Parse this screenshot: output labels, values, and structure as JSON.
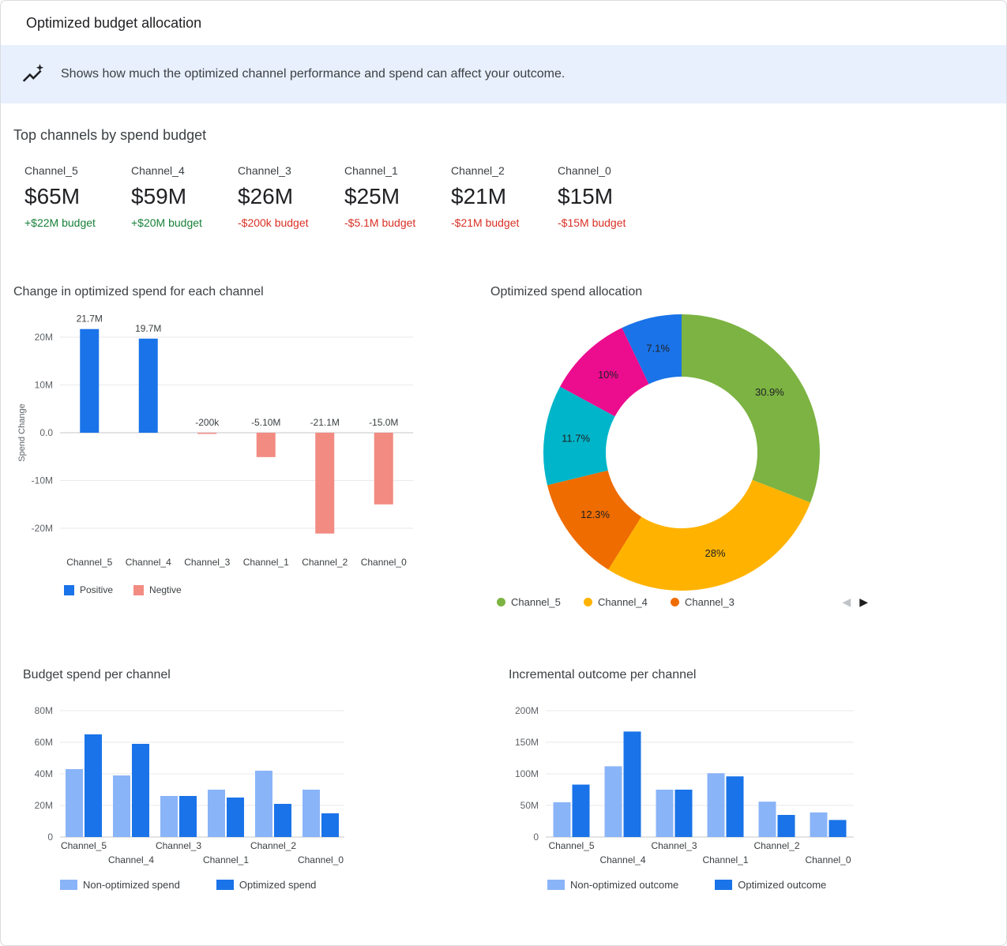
{
  "header": {
    "title": "Optimized budget allocation"
  },
  "banner": {
    "icon": "insights-icon",
    "text": "Shows how much the optimized channel performance and spend can affect your outcome."
  },
  "top_channels": {
    "title": "Top channels by spend budget",
    "cards": [
      {
        "name": "Channel_5",
        "value": "$65M",
        "delta": "+$22M budget",
        "direction": "up",
        "delta_color": "#188038"
      },
      {
        "name": "Channel_4",
        "value": "$59M",
        "delta": "+$20M budget",
        "direction": "up",
        "delta_color": "#188038"
      },
      {
        "name": "Channel_3",
        "value": "$26M",
        "delta": "-$200k budget",
        "direction": "down",
        "delta_color": "#d93025"
      },
      {
        "name": "Channel_1",
        "value": "$25M",
        "delta": "-$5.1M budget",
        "direction": "down",
        "delta_color": "#d93025"
      },
      {
        "name": "Channel_2",
        "value": "$21M",
        "delta": "-$21M budget",
        "direction": "down",
        "delta_color": "#d93025"
      },
      {
        "name": "Channel_0",
        "value": "$15M",
        "delta": "-$15M budget",
        "direction": "down",
        "delta_color": "#d93025"
      }
    ]
  },
  "pager": {
    "prev": "◀",
    "next": "▶"
  },
  "chart_data": [
    {
      "type": "bar",
      "name": "spend-change",
      "title": "Change in optimized spend for each channel",
      "ylabel": "Spend Change",
      "unit": "millions USD",
      "categories": [
        "Channel_5",
        "Channel_4",
        "Channel_3",
        "Channel_1",
        "Channel_2",
        "Channel_0"
      ],
      "values": [
        21.7,
        19.7,
        -0.2,
        -5.1,
        -21.1,
        -15.0
      ],
      "bar_labels": [
        "21.7M",
        "19.7M",
        "-200k",
        "-5.10M",
        "-21.1M",
        "-15.0M"
      ],
      "yticks": [
        20,
        10,
        0,
        -10,
        -20
      ],
      "ytick_labels": [
        "20M",
        "10M",
        "0.0",
        "-10M",
        "-20M"
      ],
      "ylim": [
        -25,
        25
      ],
      "grid": true,
      "legend_position": "bottom",
      "legend": [
        {
          "label": "Positive",
          "color": "#1a73e8"
        },
        {
          "label": "Negtive",
          "color": "#f28b82"
        }
      ]
    },
    {
      "type": "pie",
      "name": "spend-allocation",
      "title": "Optimized spend allocation",
      "donut": true,
      "slices": [
        {
          "text": "30.9%",
          "value": 30.9,
          "color": "#7cb342"
        },
        {
          "text": "28%",
          "value": 28.0,
          "color": "#ffb300"
        },
        {
          "text": "12.3%",
          "value": 12.3,
          "color": "#ef6c00"
        },
        {
          "text": "11.7%",
          "value": 11.7,
          "color": "#00b5c9"
        },
        {
          "text": "10%",
          "value": 10.0,
          "color": "#ec0c8e"
        },
        {
          "text": "7.1%",
          "value": 7.1,
          "color": "#1a73e8"
        }
      ],
      "legend_position": "bottom",
      "legend": [
        {
          "label": "Channel_5",
          "color": "#7cb342"
        },
        {
          "label": "Channel_4",
          "color": "#ffb300"
        },
        {
          "label": "Channel_3",
          "color": "#ef6c00"
        }
      ]
    },
    {
      "type": "bar",
      "name": "budget-spend",
      "title": "Budget spend per channel",
      "unit": "millions USD",
      "categories": [
        "Channel_5",
        "Channel_4",
        "Channel_3",
        "Channel_1",
        "Channel_2",
        "Channel_0"
      ],
      "series": [
        {
          "name": "Non-optimized spend",
          "color": "#8ab4f8",
          "values": [
            43,
            39,
            26,
            30,
            42,
            30
          ]
        },
        {
          "name": "Optimized spend",
          "color": "#1a73e8",
          "values": [
            65,
            59,
            26,
            25,
            21,
            15
          ]
        }
      ],
      "yticks": [
        0,
        20,
        40,
        60,
        80
      ],
      "ytick_labels": [
        "0",
        "20M",
        "40M",
        "60M",
        "80M"
      ],
      "ylim": [
        0,
        85
      ],
      "grid": true,
      "legend_position": "bottom"
    },
    {
      "type": "bar",
      "name": "incremental-outcome",
      "title": "Incremental outcome per channel",
      "unit": "millions USD",
      "categories": [
        "Channel_5",
        "Channel_4",
        "Channel_3",
        "Channel_1",
        "Channel_2",
        "Channel_0"
      ],
      "series": [
        {
          "name": "Non-optimized outcome",
          "color": "#8ab4f8",
          "values": [
            55,
            112,
            75,
            101,
            56,
            39
          ]
        },
        {
          "name": "Optimized outcome",
          "color": "#1a73e8",
          "values": [
            83,
            167,
            75,
            96,
            35,
            27
          ]
        }
      ],
      "yticks": [
        0,
        50,
        100,
        150,
        200
      ],
      "ytick_labels": [
        "0",
        "50M",
        "100M",
        "150M",
        "200M"
      ],
      "ylim": [
        0,
        210
      ],
      "grid": true,
      "legend_position": "bottom"
    }
  ]
}
